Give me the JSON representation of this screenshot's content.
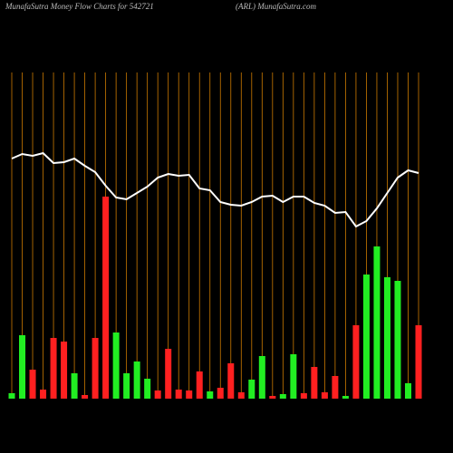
{
  "chart_data": {
    "type": "bar-line",
    "title": "MunafaSutra  Money Flow  Charts for 542721",
    "subtitle": "(ARL) MunafaSutra.com",
    "categories": [
      null,
      null,
      null,
      null,
      null,
      null,
      null,
      null,
      null,
      null,
      null,
      null,
      null,
      null,
      null,
      null,
      null,
      null,
      null,
      null,
      null,
      null,
      null,
      null,
      null,
      null,
      null,
      null,
      null,
      null,
      null,
      null,
      null,
      null,
      null,
      null,
      null,
      null,
      null,
      null
    ],
    "bars": {
      "values": [
        6,
        70,
        32,
        10,
        67,
        63,
        28,
        4,
        67,
        223,
        73,
        28,
        41,
        22,
        9,
        55,
        10,
        9,
        30,
        8,
        12,
        39,
        7,
        21,
        47,
        3,
        5,
        49,
        6,
        35,
        7,
        25,
        3,
        81,
        137,
        168,
        134,
        130,
        17,
        81
      ],
      "colors": [
        "#22ee22",
        "#22ee22",
        "#ff2020",
        "#ff2020",
        "#ff2020",
        "#ff2020",
        "#22ee22",
        "#ff2020",
        "#ff2020",
        "#ff2020",
        "#22ee22",
        "#22ee22",
        "#22ee22",
        "#22ee22",
        "#ff2020",
        "#ff2020",
        "#ff2020",
        "#ff2020",
        "#ff2020",
        "#22ee22",
        "#ff2020",
        "#ff2020",
        "#ff2020",
        "#22ee22",
        "#22ee22",
        "#ff2020",
        "#22ee22",
        "#22ee22",
        "#ff2020",
        "#ff2020",
        "#ff2020",
        "#ff2020",
        "#22ee22",
        "#ff2020",
        "#22ee22",
        "#22ee22",
        "#22ee22",
        "#22ee22",
        "#22ee22",
        "#ff2020"
      ]
    },
    "line": {
      "color": "#ffffff",
      "values": [
        265,
        270,
        268,
        271,
        260,
        261,
        265,
        257,
        250,
        235,
        222,
        220,
        227,
        234,
        244,
        248,
        246,
        247,
        232,
        230,
        217,
        214,
        213,
        217,
        223,
        224,
        217,
        223,
        223,
        216,
        213,
        205,
        206,
        190,
        196,
        210,
        227,
        244,
        252,
        249
      ]
    },
    "ylim": [
      0,
      360
    ],
    "grid_color": "#cc7a00",
    "background": "#000000"
  }
}
